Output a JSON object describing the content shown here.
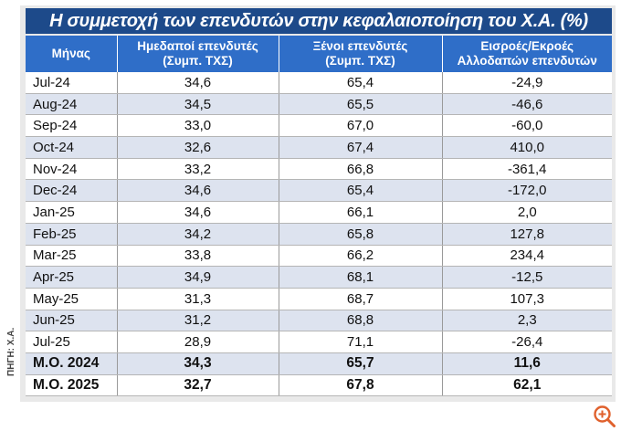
{
  "chart_data": {
    "type": "table",
    "title": "Η συμμετοχή των επενδυτών στην κεφαλαιοποίηση του Χ.Α. (%)",
    "columns": [
      "Μήνας",
      "Ημεδαποί επενδυτές (Συμπ. ΤΧΣ)",
      "Ξένοι επενδυτές (Συμπ. ΤΧΣ)",
      "Εισροές/Εκροές Αλλοδαπών επενδυτών"
    ],
    "header": {
      "month": "Μήνας",
      "domestic": [
        "Ημεδαποί επενδυτές",
        "(Συμπ. ΤΧΣ)"
      ],
      "foreign": [
        "Ξένοι επενδυτές",
        "(Συμπ. ΤΧΣ)"
      ],
      "flows": [
        "Εισροές/Εκροές",
        "Αλλοδαπών επενδυτών"
      ]
    },
    "rows": [
      {
        "month": "Jul-24",
        "domestic": "34,6",
        "foreign": "65,4",
        "flows": "-24,9"
      },
      {
        "month": "Aug-24",
        "domestic": "34,5",
        "foreign": "65,5",
        "flows": "-46,6"
      },
      {
        "month": "Sep-24",
        "domestic": "33,0",
        "foreign": "67,0",
        "flows": "-60,0"
      },
      {
        "month": "Oct-24",
        "domestic": "32,6",
        "foreign": "67,4",
        "flows": "410,0"
      },
      {
        "month": "Nov-24",
        "domestic": "33,2",
        "foreign": "66,8",
        "flows": "-361,4"
      },
      {
        "month": "Dec-24",
        "domestic": "34,6",
        "foreign": "65,4",
        "flows": "-172,0"
      },
      {
        "month": "Jan-25",
        "domestic": "34,6",
        "foreign": "66,1",
        "flows": "2,0"
      },
      {
        "month": "Feb-25",
        "domestic": "34,2",
        "foreign": "65,8",
        "flows": "127,8"
      },
      {
        "month": "Mar-25",
        "domestic": "33,8",
        "foreign": "66,2",
        "flows": "234,4"
      },
      {
        "month": "Apr-25",
        "domestic": "34,9",
        "foreign": "68,1",
        "flows": "-12,5"
      },
      {
        "month": "May-25",
        "domestic": "31,3",
        "foreign": "68,7",
        "flows": "107,3"
      },
      {
        "month": "Jun-25",
        "domestic": "31,2",
        "foreign": "68,8",
        "flows": "2,3"
      },
      {
        "month": "Jul-25",
        "domestic": "28,9",
        "foreign": "71,1",
        "flows": "-26,4"
      }
    ],
    "averages": [
      {
        "month": "Μ.Ο. 2024",
        "domestic": "34,3",
        "foreign": "65,7",
        "flows": "11,6"
      },
      {
        "month": "Μ.Ο. 2025",
        "domestic": "32,7",
        "foreign": "67,8",
        "flows": "62,1"
      }
    ],
    "source": "ΠΗΓΗ: Χ.Α."
  },
  "colors": {
    "title_bg": "#1d4a8a",
    "header_bg": "#2f6ec8",
    "row_alt": "#dde3ef"
  },
  "icons": {
    "zoom": "zoom-in-icon"
  }
}
